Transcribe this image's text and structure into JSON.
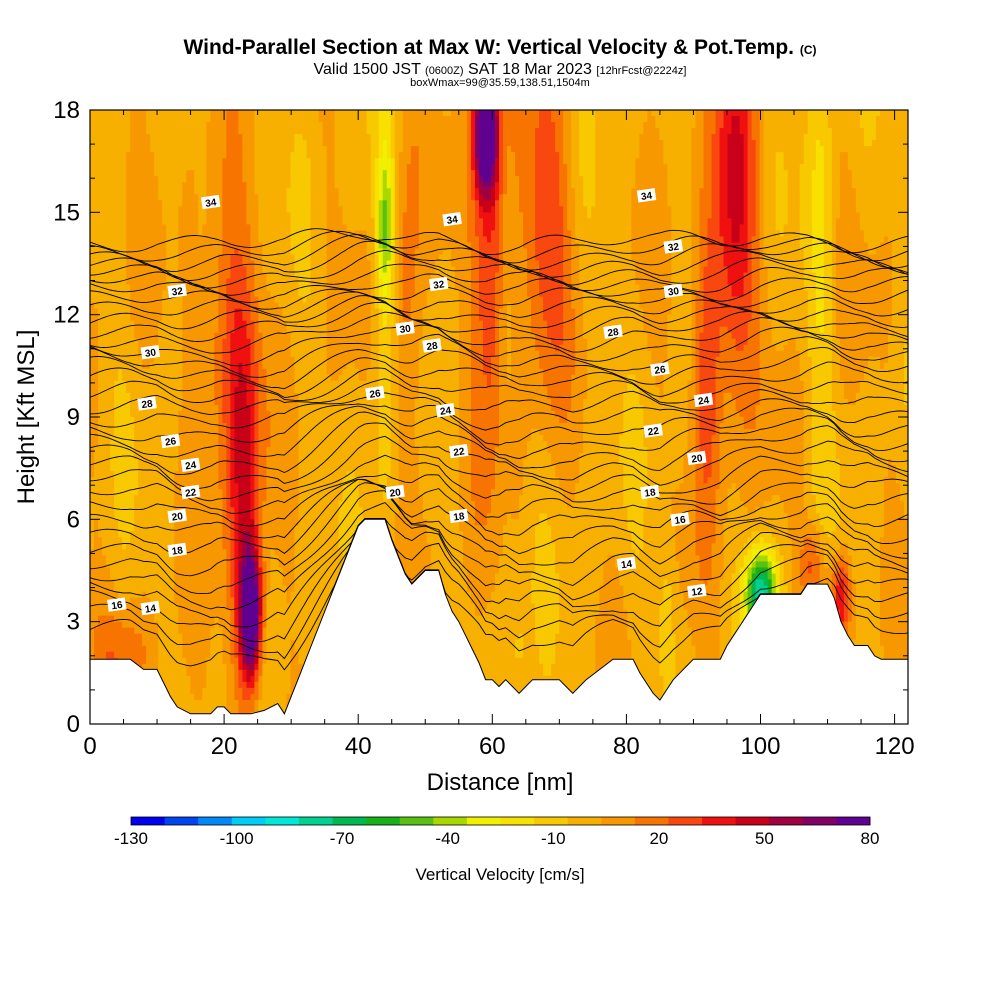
{
  "header": {
    "title": "Wind-Parallel Section at Max W: Vertical Velocity & Pot.Temp.",
    "title_mark": "(C)",
    "valid_prefix": "Valid 1500 JST",
    "valid_z": "(0600Z)",
    "valid_date": "SAT 18 Mar 2023",
    "forecast_tag": "[12hrFcst@2224z]",
    "box_info": "boxWmax=99@35.59,138.51,1504m"
  },
  "colors": {
    "palette": [
      "#0000f0",
      "#0044f0",
      "#0088f8",
      "#00ccf8",
      "#00e8d8",
      "#00d090",
      "#00b850",
      "#18b018",
      "#58c010",
      "#a8d800",
      "#f0f000",
      "#f8e000",
      "#f8c800",
      "#f8b000",
      "#f89800",
      "#f87400",
      "#f84810",
      "#f01010",
      "#c80018",
      "#a00040",
      "#800068",
      "#600090"
    ],
    "terrain": "#ffffff",
    "contour": "#000000"
  },
  "chart_data": {
    "type": "heatmap",
    "xlabel": "Distance [nm]",
    "ylabel": "Height [Kft MSL]",
    "xlim": [
      0,
      122
    ],
    "ylim": [
      0,
      18
    ],
    "xticks": [
      0,
      20,
      40,
      60,
      80,
      100,
      120
    ],
    "yticks": [
      0,
      3,
      6,
      9,
      12,
      15,
      18
    ],
    "colorbar": {
      "label": "Vertical Velocity [cm/s]",
      "min": -130,
      "max": 80,
      "tick_values": [
        -130,
        -100,
        -70,
        -40,
        -10,
        20,
        50,
        80
      ],
      "bins": 21
    },
    "terrain_height_kft": [
      [
        0,
        1.9
      ],
      [
        6,
        1.9
      ],
      [
        8,
        1.6
      ],
      [
        10,
        1.6
      ],
      [
        11,
        1.2
      ],
      [
        12,
        0.8
      ],
      [
        13,
        0.5
      ],
      [
        15,
        0.3
      ],
      [
        18,
        0.3
      ],
      [
        19,
        0.5
      ],
      [
        20,
        0.5
      ],
      [
        21,
        0.3
      ],
      [
        24,
        0.3
      ],
      [
        26,
        0.4
      ],
      [
        28,
        0.6
      ],
      [
        29,
        0.3
      ],
      [
        30,
        0.8
      ],
      [
        31,
        1.3
      ],
      [
        32,
        1.8
      ],
      [
        33,
        2.3
      ],
      [
        34,
        2.8
      ],
      [
        35,
        3.3
      ],
      [
        36,
        3.8
      ],
      [
        37,
        4.3
      ],
      [
        38,
        4.8
      ],
      [
        39,
        5.3
      ],
      [
        40,
        5.8
      ],
      [
        41,
        6.0
      ],
      [
        44,
        6.0
      ],
      [
        45,
        5.4
      ],
      [
        46,
        4.9
      ],
      [
        47,
        4.4
      ],
      [
        48,
        4.1
      ],
      [
        50,
        4.5
      ],
      [
        52,
        4.5
      ],
      [
        53,
        3.8
      ],
      [
        54,
        3.3
      ],
      [
        55,
        3.0
      ],
      [
        56,
        2.6
      ],
      [
        57,
        2.2
      ],
      [
        58,
        1.8
      ],
      [
        59,
        1.3
      ],
      [
        60,
        1.3
      ],
      [
        61,
        1.1
      ],
      [
        62,
        1.3
      ],
      [
        63,
        1.1
      ],
      [
        64,
        0.9
      ],
      [
        65,
        1.1
      ],
      [
        66,
        1.3
      ],
      [
        70,
        1.3
      ],
      [
        71,
        1.1
      ],
      [
        72,
        0.9
      ],
      [
        73,
        1.1
      ],
      [
        74,
        1.3
      ],
      [
        78,
        1.9
      ],
      [
        81,
        1.9
      ],
      [
        82,
        1.5
      ],
      [
        83,
        1.2
      ],
      [
        84,
        0.9
      ],
      [
        85,
        0.7
      ],
      [
        86,
        1.0
      ],
      [
        87,
        1.3
      ],
      [
        88,
        1.5
      ],
      [
        89,
        1.7
      ],
      [
        90,
        1.9
      ],
      [
        94,
        1.9
      ],
      [
        95,
        2.3
      ],
      [
        96,
        2.6
      ],
      [
        97,
        2.9
      ],
      [
        98,
        3.2
      ],
      [
        99,
        3.5
      ],
      [
        100,
        3.8
      ],
      [
        106,
        3.8
      ],
      [
        107,
        4.1
      ],
      [
        110,
        4.1
      ],
      [
        111,
        3.7
      ],
      [
        112,
        3.0
      ],
      [
        113,
        2.6
      ],
      [
        114,
        2.3
      ],
      [
        116,
        2.3
      ],
      [
        117,
        2.0
      ],
      [
        118,
        1.9
      ],
      [
        122,
        1.9
      ]
    ],
    "velocity_features": [
      {
        "x": 24,
        "y": 3.2,
        "sx": 1.1,
        "sy": 1.3,
        "w": 95
      },
      {
        "x": 23,
        "y": 6.5,
        "sx": 1.8,
        "sy": 4.2,
        "w": 40
      },
      {
        "x": 20,
        "y": 11.0,
        "sx": 3.0,
        "sy": 3.0,
        "w": 25
      },
      {
        "x": 59,
        "y": 17.3,
        "sx": 1.2,
        "sy": 1.2,
        "w": 95
      },
      {
        "x": 60,
        "y": 14.0,
        "sx": 2.0,
        "sy": 4.0,
        "w": 42
      },
      {
        "x": 68,
        "y": 15.0,
        "sx": 2.5,
        "sy": 3.5,
        "w": 32
      },
      {
        "x": 96,
        "y": 15.0,
        "sx": 2.3,
        "sy": 4.0,
        "w": 45
      },
      {
        "x": 92,
        "y": 10.5,
        "sx": 1.5,
        "sy": 3.0,
        "w": 30
      },
      {
        "x": 112,
        "y": 3.7,
        "sx": 1.0,
        "sy": 0.9,
        "w": 45
      },
      {
        "x": 108,
        "y": 4.6,
        "sx": 1.4,
        "sy": 0.9,
        "w": 28
      },
      {
        "x": 47,
        "y": 11.5,
        "sx": 1.5,
        "sy": 5.0,
        "w": 22
      },
      {
        "x": 5,
        "y": 2.0,
        "sx": 3.0,
        "sy": 1.0,
        "w": 18
      },
      {
        "x": 100,
        "y": 3.8,
        "sx": 1.6,
        "sy": 0.9,
        "w": -85
      },
      {
        "x": 44,
        "y": 14.5,
        "sx": 0.9,
        "sy": 1.6,
        "w": -40
      },
      {
        "x": 44,
        "y": 11.0,
        "sx": 1.5,
        "sy": 8.0,
        "w": -15
      },
      {
        "x": 62,
        "y": 13.5,
        "sx": 1.0,
        "sy": 5.0,
        "w": -12
      },
      {
        "x": 109,
        "y": 14.0,
        "sx": 1.4,
        "sy": 6.0,
        "w": -15
      },
      {
        "x": 86,
        "y": 3.0,
        "sx": 0.9,
        "sy": 1.6,
        "w": -16
      },
      {
        "x": 64,
        "y": 2.0,
        "sx": 1.0,
        "sy": 1.2,
        "w": -10
      }
    ],
    "contour_labels": [
      {
        "x": 18,
        "y": 15.3,
        "text": "34"
      },
      {
        "x": 54,
        "y": 14.8,
        "text": "34"
      },
      {
        "x": 83,
        "y": 15.5,
        "text": "34"
      },
      {
        "x": 87,
        "y": 14.0,
        "text": "32"
      },
      {
        "x": 13,
        "y": 12.7,
        "text": "32"
      },
      {
        "x": 52,
        "y": 12.9,
        "text": "32"
      },
      {
        "x": 87,
        "y": 12.7,
        "text": "30"
      },
      {
        "x": 47,
        "y": 11.6,
        "text": "30"
      },
      {
        "x": 9,
        "y": 10.9,
        "text": "30"
      },
      {
        "x": 78,
        "y": 11.5,
        "text": "28"
      },
      {
        "x": 51,
        "y": 11.1,
        "text": "28"
      },
      {
        "x": 8.5,
        "y": 9.4,
        "text": "28"
      },
      {
        "x": 85,
        "y": 10.4,
        "text": "26"
      },
      {
        "x": 42.5,
        "y": 9.7,
        "text": "26"
      },
      {
        "x": 12,
        "y": 8.3,
        "text": "26"
      },
      {
        "x": 91.5,
        "y": 9.5,
        "text": "24"
      },
      {
        "x": 53,
        "y": 9.2,
        "text": "24"
      },
      {
        "x": 15,
        "y": 7.6,
        "text": "24"
      },
      {
        "x": 84,
        "y": 8.6,
        "text": "22"
      },
      {
        "x": 55,
        "y": 8.0,
        "text": "22"
      },
      {
        "x": 15,
        "y": 6.8,
        "text": "22"
      },
      {
        "x": 90.5,
        "y": 7.8,
        "text": "20"
      },
      {
        "x": 45.5,
        "y": 6.8,
        "text": "20"
      },
      {
        "x": 13,
        "y": 6.1,
        "text": "20"
      },
      {
        "x": 83.5,
        "y": 6.8,
        "text": "18"
      },
      {
        "x": 55,
        "y": 6.1,
        "text": "18"
      },
      {
        "x": 13,
        "y": 5.1,
        "text": "18"
      },
      {
        "x": 88,
        "y": 6.0,
        "text": "16"
      },
      {
        "x": 4,
        "y": 3.5,
        "text": "16"
      },
      {
        "x": 80,
        "y": 4.7,
        "text": "14"
      },
      {
        "x": 9,
        "y": 3.4,
        "text": "14"
      },
      {
        "x": 90.5,
        "y": 3.9,
        "text": "12"
      }
    ]
  }
}
